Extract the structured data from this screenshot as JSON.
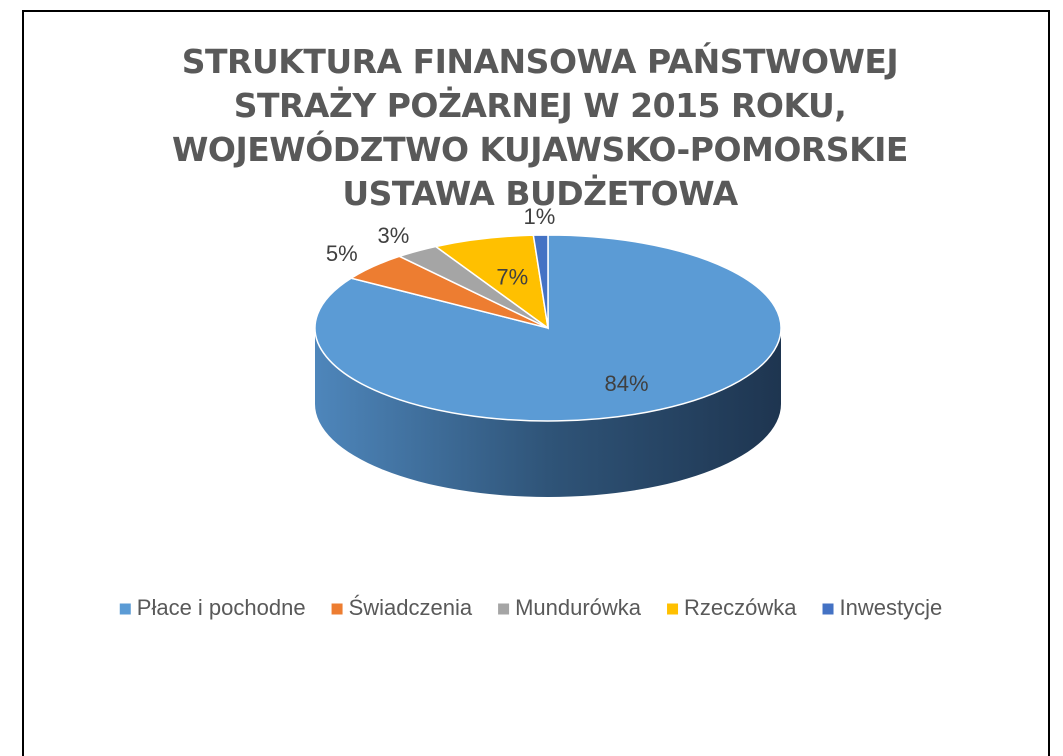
{
  "chart_data": {
    "type": "pie3d",
    "title": "STRUKTURA FINANSOWA PAŃSTWOWEJ STRAŻY POŻARNEJ W 2015 ROKU, WOJEWÓDZTWO KUJAWSKO-POMORSKIE USTAWA BUDŻETOWA",
    "categories": [
      "Płace i pochodne",
      "Świadczenia",
      "Mundurówka",
      "Rzeczówka",
      "Inwestycje"
    ],
    "values": [
      84,
      5,
      3,
      7,
      1
    ],
    "value_labels": [
      "84%",
      "5%",
      "3%",
      "7%",
      "1%"
    ],
    "colors": [
      "#5b9bd5",
      "#ed7d31",
      "#a5a5a5",
      "#ffc000",
      "#4472c4"
    ],
    "legend": "bottom"
  }
}
